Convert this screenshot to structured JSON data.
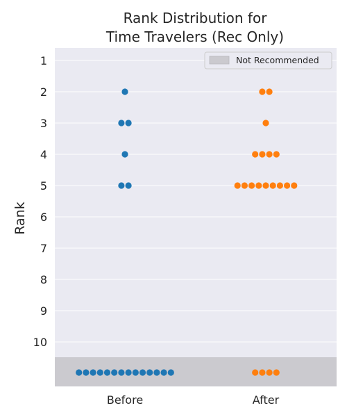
{
  "chart_data": {
    "type": "scatter",
    "title": [
      "Rank Distribution for",
      "Time Travelers (Rec Only)"
    ],
    "ylabel": "Rank",
    "xlabel": "",
    "categories": [
      "Before",
      "After"
    ],
    "y_ticks": [
      "1",
      "2",
      "3",
      "4",
      "5",
      "6",
      "7",
      "8",
      "9",
      "10"
    ],
    "ylim": [
      1,
      10
    ],
    "not_recommended_label": "Not Recommended",
    "legend_position": "top-right",
    "grid": true,
    "series": [
      {
        "name": "Before",
        "color": "#1f77b4",
        "counts_by_rank": {
          "1": 0,
          "2": 1,
          "3": 2,
          "4": 1,
          "5": 2,
          "6": 0,
          "7": 0,
          "8": 0,
          "9": 0,
          "10": 0
        },
        "not_recommended_count": 14
      },
      {
        "name": "After",
        "color": "#ff7f0e",
        "counts_by_rank": {
          "1": 0,
          "2": 2,
          "3": 1,
          "4": 4,
          "5": 9,
          "6": 0,
          "7": 0,
          "8": 0,
          "9": 0,
          "10": 0
        },
        "not_recommended_count": 4
      }
    ],
    "colors": {
      "axes_background": "#eaeaf2",
      "grid": "#ffffff",
      "not_recommended_band": "#cbcacf"
    }
  }
}
